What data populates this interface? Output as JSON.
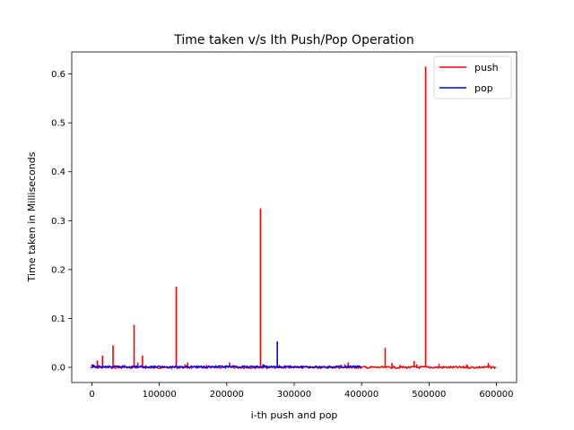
{
  "chart_data": {
    "type": "line",
    "title": "Time taken v/s Ith Push/Pop Operation",
    "xlabel": "i-th push and pop",
    "ylabel": "Time taken in Milliseconds",
    "xlim": [
      -30000,
      630000
    ],
    "ylim": [
      -0.031,
      0.645
    ],
    "xticks": [
      0,
      100000,
      200000,
      300000,
      400000,
      500000,
      600000
    ],
    "xtick_labels": [
      "0",
      "100000",
      "200000",
      "300000",
      "400000",
      "500000",
      "600000"
    ],
    "yticks": [
      0.0,
      0.1,
      0.2,
      0.3,
      0.4,
      0.5,
      0.6
    ],
    "ytick_labels": [
      "0.0",
      "0.1",
      "0.2",
      "0.3",
      "0.4",
      "0.5",
      "0.6"
    ],
    "grid": false,
    "legend_position": "top-right",
    "series": [
      {
        "name": "push",
        "color": "#ff0000",
        "baseline": 0.0,
        "x_range": [
          0,
          600000
        ],
        "spikes": [
          {
            "x": 2000,
            "y": 0.006
          },
          {
            "x": 8000,
            "y": 0.014
          },
          {
            "x": 15600,
            "y": 0.024
          },
          {
            "x": 31250,
            "y": 0.045
          },
          {
            "x": 40000,
            "y": 0.004
          },
          {
            "x": 62500,
            "y": 0.087
          },
          {
            "x": 68000,
            "y": 0.01
          },
          {
            "x": 75000,
            "y": 0.024
          },
          {
            "x": 125000,
            "y": 0.165
          },
          {
            "x": 138000,
            "y": 0.006
          },
          {
            "x": 142000,
            "y": 0.01
          },
          {
            "x": 170000,
            "y": 0.005
          },
          {
            "x": 204000,
            "y": 0.01
          },
          {
            "x": 250000,
            "y": 0.325
          },
          {
            "x": 255000,
            "y": 0.006
          },
          {
            "x": 375000,
            "y": 0.006
          },
          {
            "x": 380000,
            "y": 0.01
          },
          {
            "x": 435000,
            "y": 0.04
          },
          {
            "x": 445000,
            "y": 0.009
          },
          {
            "x": 457000,
            "y": 0.005
          },
          {
            "x": 478000,
            "y": 0.013
          },
          {
            "x": 482000,
            "y": 0.006
          },
          {
            "x": 495000,
            "y": 0.615
          },
          {
            "x": 515000,
            "y": 0.007
          },
          {
            "x": 556000,
            "y": 0.006
          },
          {
            "x": 588000,
            "y": 0.009
          }
        ]
      },
      {
        "name": "pop",
        "color": "#0000ff",
        "baseline": 0.001,
        "x_range": [
          0,
          400000
        ],
        "spikes": [
          {
            "x": 1000,
            "y": 0.006
          },
          {
            "x": 48000,
            "y": 0.005
          },
          {
            "x": 66000,
            "y": 0.004
          },
          {
            "x": 94000,
            "y": 0.003
          },
          {
            "x": 140000,
            "y": 0.004
          },
          {
            "x": 200000,
            "y": 0.004
          },
          {
            "x": 254000,
            "y": 0.006
          },
          {
            "x": 275000,
            "y": 0.053
          },
          {
            "x": 310000,
            "y": 0.003
          },
          {
            "x": 350000,
            "y": 0.003
          },
          {
            "x": 370000,
            "y": 0.005
          }
        ]
      }
    ]
  }
}
